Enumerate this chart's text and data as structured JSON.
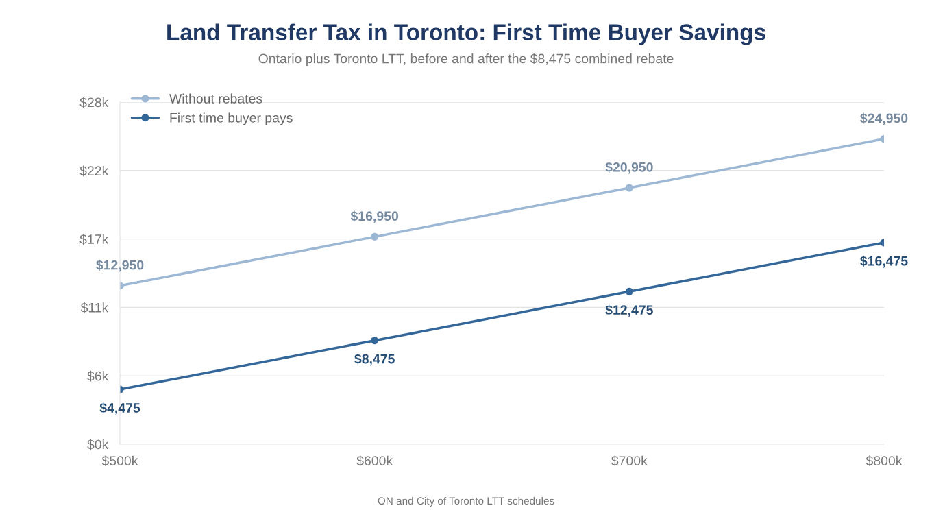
{
  "chart_data": {
    "type": "line",
    "title": "Land Transfer Tax in Toronto: First Time Buyer Savings",
    "subtitle": "Ontario plus Toronto LTT, before and after the $8,475 combined rebate",
    "x": [
      500,
      600,
      700,
      800
    ],
    "series": [
      {
        "name": "Without rebates",
        "color": "#9db8d4",
        "values": [
          12950,
          16950,
          20950,
          24950
        ],
        "value_labels": [
          "$12,950",
          "$16,950",
          "$20,950",
          "$24,950"
        ]
      },
      {
        "name": "First time buyer pays",
        "color": "#336699",
        "values": [
          4475,
          8475,
          12475,
          16475
        ],
        "value_labels": [
          "$4,475",
          "$8,475",
          "$12,475",
          "$16,475"
        ]
      }
    ],
    "xlim": [
      500,
      800
    ],
    "xticks": [
      {
        "value": 500,
        "label": "$500k"
      },
      {
        "value": 600,
        "label": "$600k"
      },
      {
        "value": 700,
        "label": "$700k"
      },
      {
        "value": 800,
        "label": "$800k"
      }
    ],
    "ylim": [
      0,
      27950
    ],
    "yticks": [
      {
        "value": 0,
        "label": "$0k"
      },
      {
        "value": 5590,
        "label": "$6k"
      },
      {
        "value": 11180,
        "label": "$11k"
      },
      {
        "value": 16770,
        "label": "$17k"
      },
      {
        "value": 22360,
        "label": "$22k"
      },
      {
        "value": 27950,
        "label": "$28k"
      }
    ],
    "grid": "y",
    "legend": "top left",
    "marker": "circle",
    "line_style": "solid",
    "annotations": [
      "ON and City of Toronto LTT schedules"
    ]
  }
}
